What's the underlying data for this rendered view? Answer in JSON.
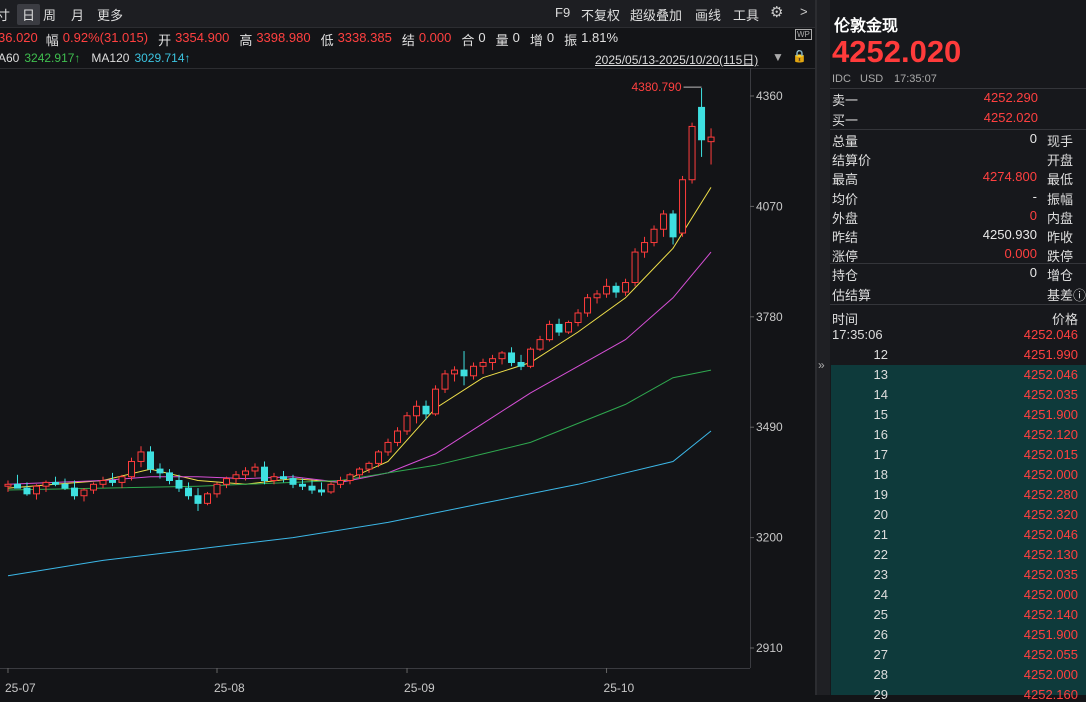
{
  "toolbar": {
    "tabs": [
      "寸",
      "日",
      "周",
      "月",
      "更多"
    ],
    "tools": [
      "F9",
      "不复权",
      "超级叠加",
      "画线",
      "工具"
    ]
  },
  "info_line": {
    "last": "36.020",
    "items": [
      {
        "label": "幅",
        "value": "0.92%(31.015)",
        "color": "#ff4040"
      },
      {
        "label": "开",
        "value": "3354.900",
        "color": "#ff4040"
      },
      {
        "label": "高",
        "value": "3398.980",
        "color": "#ff4040"
      },
      {
        "label": "低",
        "value": "3338.385",
        "color": "#ff4040"
      },
      {
        "label": "结",
        "value": "0.000",
        "color": "#ff4040"
      },
      {
        "label": "合",
        "value": "0",
        "color": "#e0e0e0"
      },
      {
        "label": "量",
        "value": "0",
        "color": "#e0e0e0"
      },
      {
        "label": "增",
        "value": "0",
        "color": "#e0e0e0"
      },
      {
        "label": "振",
        "value": "1.81%",
        "color": "#e0e0e0"
      }
    ]
  },
  "ma_legend": [
    {
      "name": "A60",
      "value": "3242.917↑",
      "color": "#3fbf4f"
    },
    {
      "name": "MA120",
      "value": "3029.714↑",
      "color": "#3cc4e0"
    }
  ],
  "date_range": "2025/05/13-2025/10/20(115日)",
  "chart_data": {
    "type": "candlestick",
    "max_label": "4380.790",
    "ylim": [
      2857.5,
      4433.5
    ],
    "yticks": [
      4360,
      4070,
      3780,
      3490,
      3200,
      2910
    ],
    "xlim": [
      -0.84,
      78.1
    ],
    "grid": false,
    "xticks": [
      {
        "value": 0,
        "label": "25-07"
      },
      {
        "value": 22,
        "label": "25-08"
      },
      {
        "value": 42,
        "label": "25-09"
      },
      {
        "value": 63,
        "label": "25-10"
      }
    ],
    "up_color": "#ff3c3c",
    "down_color": "#3ee0e0",
    "candles": [
      [
        3335,
        3350,
        3320,
        3340
      ],
      [
        3340,
        3365,
        3330,
        3330
      ],
      [
        3330,
        3345,
        3310,
        3315
      ],
      [
        3315,
        3340,
        3300,
        3335
      ],
      [
        3335,
        3350,
        3320,
        3345
      ],
      [
        3345,
        3360,
        3335,
        3340
      ],
      [
        3340,
        3355,
        3325,
        3330
      ],
      [
        3330,
        3350,
        3300,
        3310
      ],
      [
        3310,
        3330,
        3295,
        3325
      ],
      [
        3325,
        3345,
        3315,
        3340
      ],
      [
        3340,
        3360,
        3330,
        3350
      ],
      [
        3350,
        3370,
        3335,
        3345
      ],
      [
        3345,
        3365,
        3330,
        3360
      ],
      [
        3360,
        3410,
        3350,
        3400
      ],
      [
        3400,
        3440,
        3385,
        3425
      ],
      [
        3425,
        3440,
        3370,
        3380
      ],
      [
        3380,
        3395,
        3355,
        3370
      ],
      [
        3370,
        3380,
        3340,
        3350
      ],
      [
        3350,
        3365,
        3320,
        3330
      ],
      [
        3330,
        3345,
        3300,
        3310
      ],
      [
        3310,
        3330,
        3270,
        3290
      ],
      [
        3290,
        3320,
        3285,
        3315
      ],
      [
        3315,
        3345,
        3305,
        3340
      ],
      [
        3340,
        3360,
        3330,
        3355
      ],
      [
        3355,
        3375,
        3340,
        3365
      ],
      [
        3365,
        3385,
        3350,
        3375
      ],
      [
        3375,
        3395,
        3360,
        3385
      ],
      [
        3385,
        3400,
        3340,
        3350
      ],
      [
        3350,
        3370,
        3340,
        3360
      ],
      [
        3360,
        3375,
        3345,
        3355
      ],
      [
        3355,
        3365,
        3330,
        3340
      ],
      [
        3340,
        3355,
        3325,
        3335
      ],
      [
        3335,
        3350,
        3315,
        3325
      ],
      [
        3325,
        3345,
        3310,
        3320
      ],
      [
        3320,
        3345,
        3315,
        3340
      ],
      [
        3340,
        3360,
        3330,
        3350
      ],
      [
        3350,
        3370,
        3340,
        3365
      ],
      [
        3365,
        3385,
        3355,
        3380
      ],
      [
        3380,
        3400,
        3370,
        3395
      ],
      [
        3395,
        3430,
        3385,
        3425
      ],
      [
        3425,
        3460,
        3415,
        3450
      ],
      [
        3450,
        3490,
        3440,
        3480
      ],
      [
        3480,
        3530,
        3470,
        3520
      ],
      [
        3520,
        3560,
        3500,
        3545
      ],
      [
        3545,
        3560,
        3510,
        3525
      ],
      [
        3525,
        3600,
        3520,
        3590
      ],
      [
        3590,
        3640,
        3580,
        3630
      ],
      [
        3630,
        3650,
        3610,
        3640
      ],
      [
        3640,
        3690,
        3600,
        3625
      ],
      [
        3625,
        3660,
        3615,
        3650
      ],
      [
        3650,
        3670,
        3630,
        3660
      ],
      [
        3660,
        3680,
        3640,
        3670
      ],
      [
        3670,
        3690,
        3655,
        3685
      ],
      [
        3685,
        3700,
        3650,
        3660
      ],
      [
        3660,
        3680,
        3640,
        3650
      ],
      [
        3650,
        3700,
        3645,
        3695
      ],
      [
        3695,
        3730,
        3690,
        3720
      ],
      [
        3720,
        3770,
        3715,
        3760
      ],
      [
        3760,
        3775,
        3730,
        3740
      ],
      [
        3740,
        3770,
        3735,
        3765
      ],
      [
        3765,
        3800,
        3755,
        3790
      ],
      [
        3790,
        3840,
        3780,
        3830
      ],
      [
        3830,
        3850,
        3815,
        3840
      ],
      [
        3840,
        3880,
        3830,
        3860
      ],
      [
        3860,
        3870,
        3830,
        3845
      ],
      [
        3845,
        3880,
        3835,
        3870
      ],
      [
        3870,
        3960,
        3860,
        3950
      ],
      [
        3950,
        3990,
        3935,
        3975
      ],
      [
        3975,
        4020,
        3965,
        4010
      ],
      [
        4010,
        4060,
        3990,
        4050
      ],
      [
        4050,
        4060,
        3970,
        3990
      ],
      [
        4000,
        4150,
        3990,
        4140
      ],
      [
        4140,
        4290,
        4130,
        4280
      ],
      [
        4330,
        4380.79,
        4200,
        4245
      ],
      [
        4240,
        4275,
        4180,
        4252
      ]
    ],
    "series": [
      {
        "color": "#f0e04a",
        "x": [
          0,
          5,
          10,
          15,
          20,
          25,
          30,
          35,
          40,
          45,
          50,
          55,
          60,
          65,
          70,
          74
        ],
        "values": [
          3330,
          3340,
          3350,
          3380,
          3350,
          3340,
          3355,
          3345,
          3400,
          3540,
          3620,
          3660,
          3740,
          3830,
          3960,
          4120
        ]
      },
      {
        "color": "#d64fd6",
        "x": [
          0,
          5,
          10,
          15,
          20,
          25,
          30,
          35,
          40,
          45,
          50,
          55,
          60,
          65,
          70,
          74
        ],
        "values": [
          3340,
          3345,
          3350,
          3360,
          3360,
          3355,
          3360,
          3345,
          3370,
          3420,
          3500,
          3580,
          3650,
          3720,
          3830,
          3950
        ]
      },
      {
        "color": "#2fa84f",
        "x": [
          0,
          10,
          20,
          30,
          35,
          40,
          45,
          50,
          55,
          60,
          65,
          70,
          74
        ],
        "values": [
          3325,
          3330,
          3335,
          3345,
          3350,
          3370,
          3390,
          3420,
          3450,
          3500,
          3550,
          3620,
          3640
        ]
      },
      {
        "color": "#3cb8e8",
        "x": [
          0,
          10,
          20,
          30,
          40,
          50,
          60,
          70,
          74
        ],
        "values": [
          3100,
          3140,
          3170,
          3200,
          3240,
          3290,
          3340,
          3400,
          3480
        ]
      }
    ]
  },
  "quote": {
    "title": "伦敦金现",
    "price": "4252.020",
    "meta": [
      "IDC",
      "USD",
      "17:35:07"
    ],
    "book": [
      {
        "label": "卖一",
        "value": "4252.290",
        "color": "#ff4040"
      },
      {
        "label": "买一",
        "value": "4252.020",
        "color": "#ff4040"
      }
    ],
    "stats": [
      {
        "label": "总量",
        "value": "0",
        "label2": "现手",
        "color": "#e8e8e8"
      },
      {
        "label": "结算价",
        "value": null,
        "label2": "开盘",
        "color": "#e8e8e8"
      },
      {
        "label": "最高",
        "value": "4274.800",
        "label2": "最低",
        "color": "#ff4040"
      },
      {
        "label": "均价",
        "value": "-",
        "label2": "振幅",
        "color": "#e8e8e8"
      },
      {
        "label": "外盘",
        "value": "0",
        "label2": "内盘",
        "color": "#ff4040"
      },
      {
        "label": "昨结",
        "value": "4250.930",
        "label2": "昨收",
        "color": "#e8e8e8"
      },
      {
        "label": "涨停",
        "value": "0.000",
        "label2": "跌停",
        "color": "#ff4040"
      }
    ],
    "position": [
      {
        "label": "持仓",
        "value": "0",
        "label2": "增仓",
        "color": "#e8e8e8"
      },
      {
        "label": "估结算",
        "value": null,
        "label2": "基差ⓘ",
        "color": "#e8e8e8"
      }
    ],
    "ticks_header": [
      "时间",
      "价格"
    ],
    "ticks": [
      [
        "17:35:06",
        "4252.046"
      ],
      [
        "12",
        "4251.990"
      ],
      [
        "13",
        "4252.046"
      ],
      [
        "14",
        "4252.035"
      ],
      [
        "15",
        "4251.900"
      ],
      [
        "16",
        "4252.120"
      ],
      [
        "17",
        "4252.015"
      ],
      [
        "18",
        "4252.000"
      ],
      [
        "19",
        "4252.280"
      ],
      [
        "20",
        "4252.320"
      ],
      [
        "21",
        "4252.046"
      ],
      [
        "22",
        "4252.130"
      ],
      [
        "23",
        "4252.035"
      ],
      [
        "24",
        "4252.000"
      ],
      [
        "25",
        "4252.140"
      ],
      [
        "26",
        "4251.900"
      ],
      [
        "27",
        "4252.055"
      ],
      [
        "28",
        "4252.000"
      ],
      [
        "29",
        "4252.160"
      ]
    ]
  }
}
